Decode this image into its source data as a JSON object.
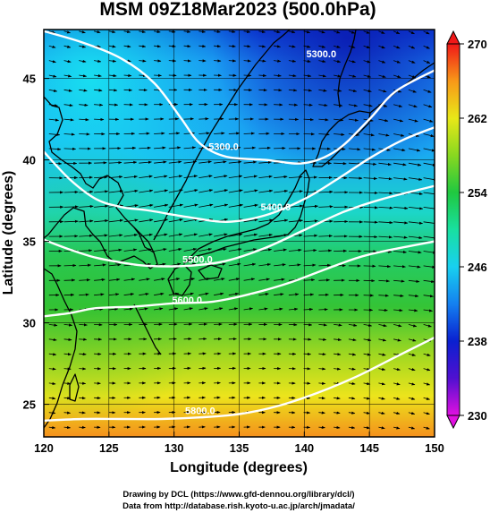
{
  "chart_data": {
    "type": "heatmap",
    "title": "MSM 09Z18Mar2023 (500.0hPa)",
    "xlabel": "Longitude (degrees)",
    "ylabel": "Latitude  (degrees)",
    "xlim": [
      120,
      150
    ],
    "ylim": [
      23,
      48
    ],
    "x_ticks": [
      120,
      125,
      130,
      135,
      140,
      145,
      150
    ],
    "y_ticks": [
      25,
      30,
      35,
      40,
      45
    ],
    "colorbar": {
      "range": [
        230,
        270
      ],
      "ticks": [
        230,
        238,
        246,
        254,
        262,
        270
      ],
      "stops": [
        {
          "value": 230,
          "color": "#e010e0"
        },
        {
          "value": 234,
          "color": "#5010d0"
        },
        {
          "value": 238,
          "color": "#0a20d0"
        },
        {
          "value": 242,
          "color": "#1480f0"
        },
        {
          "value": 246,
          "color": "#18d0f0"
        },
        {
          "value": 250,
          "color": "#18e0a0"
        },
        {
          "value": 254,
          "color": "#20c840"
        },
        {
          "value": 258,
          "color": "#88d820"
        },
        {
          "value": 262,
          "color": "#e8e818"
        },
        {
          "value": 266,
          "color": "#f89818"
        },
        {
          "value": 270,
          "color": "#f01818"
        }
      ]
    },
    "contours": [
      {
        "level": "5300.0",
        "points": [
          [
            120,
            47.9
          ],
          [
            123,
            47.2
          ],
          [
            126,
            46.2
          ],
          [
            128.5,
            44.7
          ],
          [
            130.5,
            42.6
          ],
          [
            132,
            41.0
          ],
          [
            134,
            40.2
          ],
          [
            137,
            40.0
          ],
          [
            140,
            39.8
          ],
          [
            142.5,
            40.6
          ],
          [
            145,
            42.5
          ],
          [
            147,
            44.2
          ],
          [
            150,
            45.5
          ]
        ]
      },
      {
        "level": "5400.0",
        "points": [
          [
            120,
            40.5
          ],
          [
            122,
            38.8
          ],
          [
            124,
            37.6
          ],
          [
            126,
            37.1
          ],
          [
            128,
            36.9
          ],
          [
            131,
            36.5
          ],
          [
            134,
            36.2
          ],
          [
            137,
            36.6
          ],
          [
            140,
            37.6
          ],
          [
            142.5,
            38.8
          ],
          [
            145,
            40.1
          ],
          [
            147.5,
            41.2
          ],
          [
            150,
            42.0
          ]
        ]
      },
      {
        "level": "5500.0",
        "points": [
          [
            120,
            35.1
          ],
          [
            122,
            34.5
          ],
          [
            124,
            34.0
          ],
          [
            126,
            33.7
          ],
          [
            128,
            33.5
          ],
          [
            131,
            33.5
          ],
          [
            134,
            33.8
          ],
          [
            137,
            34.6
          ],
          [
            140,
            35.7
          ],
          [
            143,
            36.8
          ],
          [
            146,
            37.6
          ],
          [
            150,
            38.4
          ]
        ]
      },
      {
        "level": "5600.0",
        "points": [
          [
            120,
            30.4
          ],
          [
            122,
            30.6
          ],
          [
            124,
            30.9
          ],
          [
            127,
            31.0
          ],
          [
            130,
            31.2
          ],
          [
            133,
            31.3
          ],
          [
            136,
            31.8
          ],
          [
            139,
            32.5
          ],
          [
            142,
            33.4
          ],
          [
            145,
            34.2
          ],
          [
            150,
            35.0
          ]
        ]
      },
      {
        "level": "5800.0",
        "points": [
          [
            120,
            24.0
          ],
          [
            123,
            24.1
          ],
          [
            126,
            24.1
          ],
          [
            129,
            24.1
          ],
          [
            132,
            24.2
          ],
          [
            135,
            24.4
          ],
          [
            138,
            24.9
          ],
          [
            141,
            25.7
          ],
          [
            144,
            26.7
          ],
          [
            147,
            27.9
          ],
          [
            150,
            29.1
          ]
        ]
      }
    ],
    "contour_labels": [
      {
        "text": "5300.0",
        "lon": 141.3,
        "lat": 46.3
      },
      {
        "text": "5300.0",
        "lon": 133.8,
        "lat": 40.6
      },
      {
        "text": "5400.0",
        "lon": 137.8,
        "lat": 36.9
      },
      {
        "text": "5500.0",
        "lon": 131.8,
        "lat": 33.7
      },
      {
        "text": "5600.0",
        "lon": 131.0,
        "lat": 31.2
      },
      {
        "text": "5800.0",
        "lon": 132.0,
        "lat": 24.4
      }
    ]
  },
  "credits": {
    "line1": "Drawing by DCL (https://www.gfd-dennou.org/library/dcl/)",
    "line2": "Data from http://database.rish.kyoto-u.ac.jp/arch/jmadata/"
  }
}
